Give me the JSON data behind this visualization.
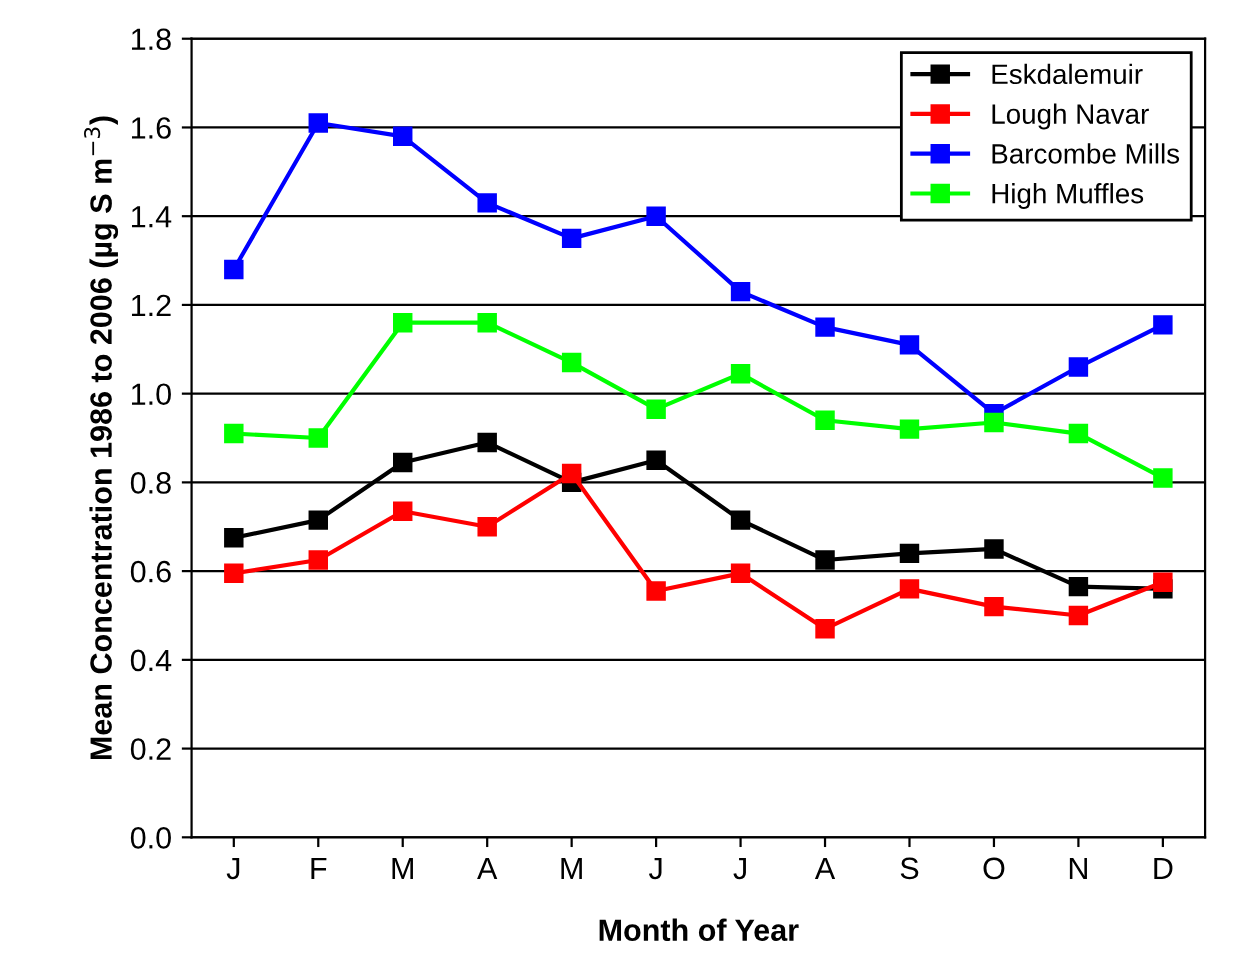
{
  "chart_data": {
    "type": "line",
    "xlabel": "Month of Year",
    "ylabel": "Mean Concentration 1986 to 2006 (µg S m$^{−3}$)",
    "categories": [
      "J",
      "F",
      "M",
      "A",
      "M",
      "J",
      "J",
      "A",
      "S",
      "O",
      "N",
      "D"
    ],
    "series": [
      {
        "name": "Eskdalemuir",
        "color": "#000000",
        "values": [
          0.675,
          0.715,
          0.845,
          0.89,
          0.8,
          0.85,
          0.715,
          0.625,
          0.64,
          0.65,
          0.565,
          0.56
        ]
      },
      {
        "name": "Lough Navar",
        "color": "#ff0000",
        "values": [
          0.595,
          0.625,
          0.735,
          0.7,
          0.82,
          0.555,
          0.595,
          0.47,
          0.56,
          0.52,
          0.5,
          0.575
        ]
      },
      {
        "name": "Barcombe Mills",
        "color": "#0000ff",
        "values": [
          1.28,
          1.61,
          1.58,
          1.43,
          1.35,
          1.4,
          1.23,
          1.15,
          1.11,
          0.955,
          1.06,
          1.155
        ]
      },
      {
        "name": "High Muffles",
        "color": "#00ff00",
        "values": [
          0.91,
          0.9,
          1.16,
          1.16,
          1.07,
          0.965,
          1.045,
          0.94,
          0.92,
          0.935,
          0.91,
          0.81
        ]
      }
    ],
    "ylim": [
      0,
      1.8
    ],
    "yticks": [
      {
        "value": 0,
        "label": "0.0"
      },
      {
        "value": 0.2,
        "label": "0.2"
      },
      {
        "value": 0.4,
        "label": "0.4"
      },
      {
        "value": 0.6,
        "label": "0.6"
      },
      {
        "value": 0.8,
        "label": "0.8"
      },
      {
        "value": 1.0,
        "label": "1.0"
      },
      {
        "value": 1.2,
        "label": "1.2"
      },
      {
        "value": 1.4,
        "label": "1.4"
      },
      {
        "value": 1.6,
        "label": "1.6"
      },
      {
        "value": 1.8,
        "label": "1.8"
      }
    ],
    "grid": "y",
    "legend": "top right",
    "marker": "square",
    "line_style": "solid"
  }
}
